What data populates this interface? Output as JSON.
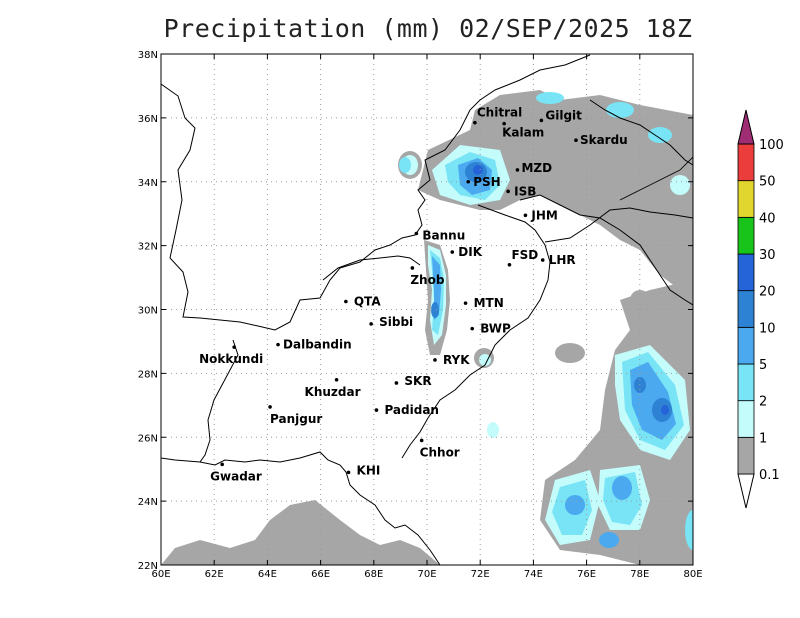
{
  "title": "Precipitation (mm) 02/SEP/2025 18Z",
  "map": {
    "lon_range": [
      60,
      80
    ],
    "lat_range": [
      22,
      38
    ],
    "x_ticks": [
      "60E",
      "62E",
      "64E",
      "66E",
      "68E",
      "70E",
      "72E",
      "74E",
      "76E",
      "78E",
      "80E"
    ],
    "y_ticks": [
      "22N",
      "24N",
      "26N",
      "28N",
      "30N",
      "32N",
      "34N",
      "36N",
      "38N"
    ],
    "grid": true
  },
  "cities": [
    {
      "name": "Chitral",
      "lon": 71.8,
      "lat": 35.85,
      "label_dx": 2,
      "label_dy": -6
    },
    {
      "name": "Gilgit",
      "lon": 74.3,
      "lat": 35.92,
      "label_dx": 4,
      "label_dy": -1
    },
    {
      "name": "Kalam",
      "lon": 72.9,
      "lat": 35.82,
      "label_dx": -2,
      "label_dy": 13
    },
    {
      "name": "Skardu",
      "lon": 75.6,
      "lat": 35.3,
      "label_dx": 4,
      "label_dy": 4
    },
    {
      "name": "MZD",
      "lon": 73.4,
      "lat": 34.37,
      "label_dx": 4,
      "label_dy": 2
    },
    {
      "name": "PSH",
      "lon": 71.55,
      "lat": 34.0,
      "label_dx": 5,
      "label_dy": 4
    },
    {
      "name": "ISB",
      "lon": 73.05,
      "lat": 33.7,
      "label_dx": 6,
      "label_dy": 4
    },
    {
      "name": "JHM",
      "lon": 73.7,
      "lat": 32.95,
      "label_dx": 6,
      "label_dy": 4
    },
    {
      "name": "Bannu",
      "lon": 69.6,
      "lat": 32.38,
      "label_dx": 6,
      "label_dy": 6
    },
    {
      "name": "DIK",
      "lon": 70.95,
      "lat": 31.8,
      "label_dx": 6,
      "label_dy": 4
    },
    {
      "name": "FSD",
      "lon": 73.1,
      "lat": 31.4,
      "label_dx": 2,
      "label_dy": -6
    },
    {
      "name": "LHR",
      "lon": 74.35,
      "lat": 31.55,
      "label_dx": 6,
      "label_dy": 4
    },
    {
      "name": "Zhob",
      "lon": 69.45,
      "lat": 31.3,
      "label_dx": -2,
      "label_dy": 16
    },
    {
      "name": "QTA",
      "lon": 66.95,
      "lat": 30.25,
      "label_dx": 8,
      "label_dy": 4
    },
    {
      "name": "MTN",
      "lon": 71.45,
      "lat": 30.2,
      "label_dx": 8,
      "label_dy": 4
    },
    {
      "name": "Sibbi",
      "lon": 67.9,
      "lat": 29.55,
      "label_dx": 8,
      "label_dy": 2
    },
    {
      "name": "BWP",
      "lon": 71.7,
      "lat": 29.4,
      "label_dx": 8,
      "label_dy": 4
    },
    {
      "name": "Dalbandin",
      "lon": 64.4,
      "lat": 28.9,
      "label_dx": 5,
      "label_dy": 4
    },
    {
      "name": "Nokkundi",
      "lon": 62.75,
      "lat": 28.82,
      "label_dx": -35,
      "label_dy": 16
    },
    {
      "name": "RYK",
      "lon": 70.3,
      "lat": 28.42,
      "label_dx": 8,
      "label_dy": 4
    },
    {
      "name": "Khuzdar",
      "lon": 66.6,
      "lat": 27.8,
      "label_dx": -32,
      "label_dy": 16
    },
    {
      "name": "SKR",
      "lon": 68.85,
      "lat": 27.7,
      "label_dx": 8,
      "label_dy": 2
    },
    {
      "name": "Panjgur",
      "lon": 64.1,
      "lat": 26.95,
      "label_dx": 0,
      "label_dy": 16
    },
    {
      "name": "Padidan",
      "lon": 68.1,
      "lat": 26.85,
      "label_dx": 8,
      "label_dy": 4
    },
    {
      "name": "Chhor",
      "lon": 69.8,
      "lat": 25.9,
      "label_dx": -2,
      "label_dy": 16
    },
    {
      "name": "KHI",
      "lon": 67.05,
      "lat": 24.9,
      "label_dx": 8,
      "label_dy": 2
    },
    {
      "name": "Gwadar",
      "lon": 62.3,
      "lat": 25.15,
      "label_dx": -12,
      "label_dy": 16
    }
  ],
  "colorbar": {
    "labels": [
      "0.1",
      "1",
      "2",
      "5",
      "10",
      "20",
      "30",
      "40",
      "50",
      "100"
    ],
    "colors": [
      "#ffffff",
      "#a6a6a6",
      "#c4fbfb",
      "#78e4f6",
      "#4aa9ef",
      "#2e82d3",
      "#2563d8",
      "#19c41a",
      "#e1d62d",
      "#ec3d3d",
      "#a02d74"
    ]
  }
}
